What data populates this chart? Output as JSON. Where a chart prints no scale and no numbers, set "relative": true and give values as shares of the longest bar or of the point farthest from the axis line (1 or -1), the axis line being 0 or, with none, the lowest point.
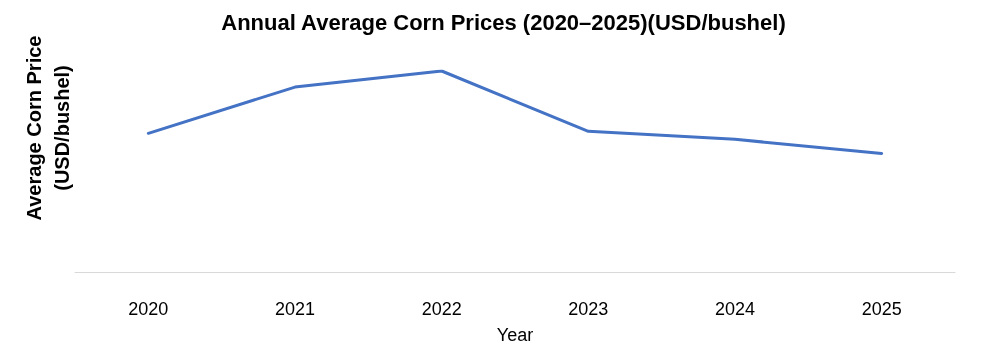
{
  "chart_data": {
    "type": "line",
    "title": "Annual Average Corn Prices (2020–2025)(USD/bushel)",
    "xlabel": "Year",
    "ylabel": "Average Corn Price\n(USD/bushel)",
    "categories": [
      "2020",
      "2021",
      "2022",
      "2023",
      "2024",
      "2025"
    ],
    "relative": true,
    "series": [
      {
        "color": "#4472c4",
        "values": [
          0.69,
          0.92,
          1,
          0.7,
          0.66,
          0.59
        ]
      }
    ],
    "marker": "none",
    "line_style": "solid"
  }
}
